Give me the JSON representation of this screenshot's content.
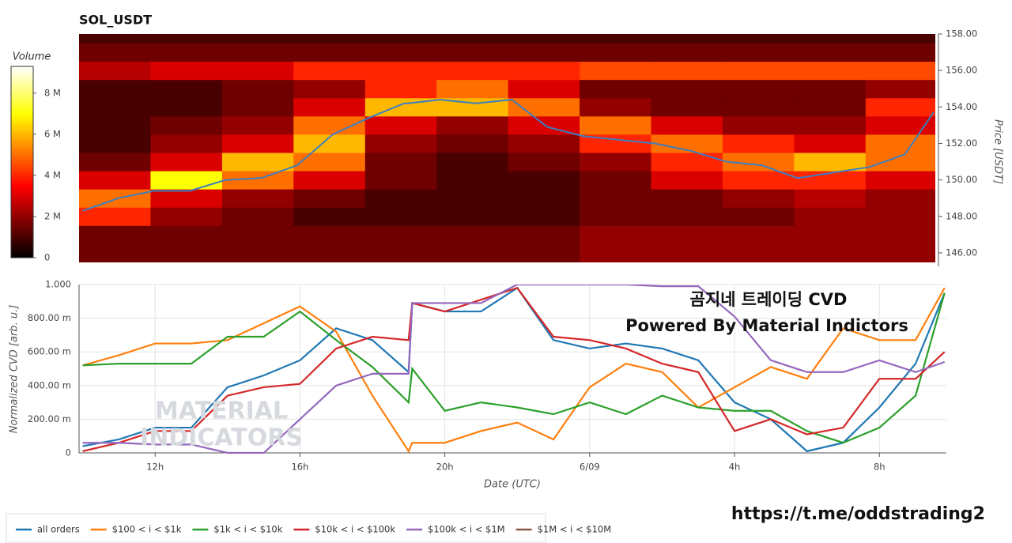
{
  "chart_data": [
    {
      "type": "heatmap",
      "title": "SOL_USDT",
      "colorbar_label": "Volume",
      "colorbar_lim": [
        0,
        9.3
      ],
      "colorbar_ticks": [
        0,
        {
          "value": 2,
          "label": "2 M"
        },
        {
          "value": 4,
          "label": "4 M"
        },
        {
          "value": 6,
          "label": "6 M"
        },
        {
          "value": 8,
          "label": "8 M"
        }
      ],
      "xlim": [
        9.9,
        33.85
      ],
      "x_edges": [
        9.9,
        11.9,
        13.9,
        15.9,
        17.9,
        19.9,
        21.9,
        23.9,
        25.9,
        27.9,
        29.9,
        31.9,
        33.85
      ],
      "price_levels": [
        146,
        147,
        148,
        149,
        150,
        151,
        152,
        153,
        154,
        155,
        156,
        157,
        158
      ],
      "values": [
        [
          1.5,
          1.5,
          1.5,
          1.5,
          1.5,
          1.5,
          1.5,
          2,
          2,
          2,
          2,
          2
        ],
        [
          1.5,
          1.5,
          1.5,
          1.5,
          1.5,
          1.5,
          1.5,
          2,
          2,
          2,
          2,
          2
        ],
        [
          4,
          2,
          1.5,
          1,
          1,
          1,
          1,
          1.5,
          1.5,
          1.5,
          2,
          2
        ],
        [
          5,
          3,
          2,
          1.5,
          1,
          1,
          1,
          1.5,
          1.5,
          2,
          2.5,
          2
        ],
        [
          3,
          7,
          5,
          3,
          1.5,
          1,
          1,
          1.5,
          3,
          4,
          4,
          3
        ],
        [
          1.5,
          3,
          6,
          5,
          1.5,
          1,
          1.5,
          2,
          4,
          5,
          6,
          5
        ],
        [
          1,
          2,
          3,
          6,
          2,
          1.5,
          2,
          4,
          5,
          4,
          3,
          5
        ],
        [
          1,
          1.5,
          2,
          5,
          3,
          2,
          3,
          5,
          3,
          2,
          2,
          3
        ],
        [
          1,
          1,
          1.5,
          3,
          6,
          6,
          5,
          2,
          1.5,
          1.5,
          1.5,
          4
        ],
        [
          1,
          1,
          1.5,
          2,
          4,
          5,
          3,
          1.5,
          1.5,
          1.5,
          1.5,
          2
        ],
        [
          2.5,
          3,
          3,
          4,
          4,
          4,
          4,
          4.5,
          4.5,
          4.5,
          4.5,
          4.5
        ],
        [
          1.5,
          1.5,
          1.5,
          1.5,
          1.5,
          1.5,
          1.5,
          1.5,
          1.5,
          1.5,
          1.5,
          1.5
        ],
        [
          1,
          1,
          1,
          1,
          1,
          1,
          1,
          1,
          1,
          1,
          1,
          1
        ]
      ],
      "price_line": {
        "color": "#3b7fc0",
        "x": [
          10,
          11,
          12,
          13,
          14,
          15,
          16,
          17,
          18,
          19,
          19.1,
          20,
          21,
          22,
          23,
          24,
          25,
          26,
          27,
          28,
          29,
          30,
          31,
          32,
          33,
          33.8
        ],
        "values": [
          148.3,
          149.0,
          149.4,
          149.4,
          150.0,
          150.1,
          150.8,
          152.5,
          153.4,
          154.2,
          154.2,
          154.4,
          154.2,
          154.4,
          152.9,
          152.4,
          152.2,
          152.0,
          151.6,
          151.0,
          150.8,
          150.1,
          150.4,
          150.7,
          151.4,
          153.7
        ]
      },
      "y2_label": "Price [USDT]",
      "y2lim": [
        145.26,
        158.0
      ],
      "y2ticks": [
        {
          "value": 146,
          "label": "146.00"
        },
        {
          "value": 148,
          "label": "148.00"
        },
        {
          "value": 150,
          "label": "150.00"
        },
        {
          "value": 152,
          "label": "152.00"
        },
        {
          "value": 154,
          "label": "154.00"
        },
        {
          "value": 156,
          "label": "156.00"
        },
        {
          "value": 158,
          "label": "158.00"
        }
      ]
    },
    {
      "type": "line",
      "ylabel": "Normalized CVD [arb. u.]",
      "xlabel": "Date (UTC)",
      "annotations": [
        "곰지네 트레이딩 CVD",
        "Powered By Material Indictors"
      ],
      "xlim": [
        9.9,
        33.85
      ],
      "xticks": [
        {
          "value": 12,
          "label": "12h"
        },
        {
          "value": 16,
          "label": "16h"
        },
        {
          "value": 20,
          "label": "20h"
        },
        {
          "value": 24,
          "label": "6/09"
        },
        {
          "value": 28,
          "label": "4h"
        },
        {
          "value": 32,
          "label": "8h"
        }
      ],
      "ylim": [
        0,
        1
      ],
      "yticks": [
        0,
        {
          "value": 0.2,
          "label": "200.00 m"
        },
        {
          "value": 0.4,
          "label": "400.00 m"
        },
        {
          "value": 0.6,
          "label": "600.00 m"
        },
        {
          "value": 0.8,
          "label": "800.00 m"
        },
        {
          "value": 1,
          "label": "1.000"
        }
      ],
      "grid": true,
      "legend": "bottom-left",
      "x": [
        10,
        11,
        12,
        13,
        14,
        15,
        16,
        17,
        18,
        19,
        19.1,
        20,
        21,
        22,
        23,
        24,
        25,
        26,
        27,
        28,
        29,
        30,
        31,
        32,
        33,
        33.8
      ],
      "series": [
        {
          "name": "all orders",
          "color": "#1f77b4",
          "values": [
            0.04,
            0.08,
            0.15,
            0.15,
            0.39,
            0.46,
            0.55,
            0.74,
            0.67,
            0.48,
            0.89,
            0.84,
            0.84,
            0.98,
            0.67,
            0.62,
            0.65,
            0.62,
            0.55,
            0.3,
            0.2,
            0.01,
            0.06,
            0.27,
            0.53,
            0.95
          ]
        },
        {
          "name": "$100 < i < $1k",
          "color": "#ff7f0e",
          "values": [
            0.52,
            0.58,
            0.65,
            0.65,
            0.67,
            0.77,
            0.87,
            0.72,
            0.34,
            0.01,
            0.06,
            0.06,
            0.13,
            0.18,
            0.08,
            0.39,
            0.53,
            0.48,
            0.27,
            0.39,
            0.51,
            0.44,
            0.74,
            0.67,
            0.67,
            0.98
          ]
        },
        {
          "name": "$1k < i < $10k",
          "color": "#2ca02c",
          "values": [
            0.52,
            0.53,
            0.53,
            0.53,
            0.69,
            0.69,
            0.84,
            0.67,
            0.51,
            0.3,
            0.5,
            0.25,
            0.3,
            0.27,
            0.23,
            0.3,
            0.23,
            0.34,
            0.27,
            0.25,
            0.25,
            0.13,
            0.06,
            0.15,
            0.34,
            0.95
          ]
        },
        {
          "name": "$10k < i < $100k",
          "color": "#d62728",
          "values": [
            0.01,
            0.06,
            0.13,
            0.13,
            0.34,
            0.39,
            0.41,
            0.62,
            0.69,
            0.67,
            0.89,
            0.84,
            0.91,
            0.98,
            0.69,
            0.67,
            0.62,
            0.53,
            0.48,
            0.13,
            0.2,
            0.11,
            0.15,
            0.44,
            0.44,
            0.6
          ]
        },
        {
          "name": "$100k < i < $1M",
          "color": "#9467bd",
          "values": [
            0.06,
            0.06,
            0.05,
            0.05,
            0,
            0,
            0.2,
            0.4,
            0.47,
            0.47,
            0.89,
            0.89,
            0.89,
            1,
            1,
            1,
            1,
            0.99,
            0.99,
            0.81,
            0.55,
            0.48,
            0.48,
            0.55,
            0.48,
            0.54
          ]
        },
        {
          "name": "$1M < i < $10M",
          "color": "#8c564b",
          "values": [
            null,
            null,
            null,
            null,
            null,
            null,
            null,
            null,
            null,
            null,
            null,
            null,
            null,
            null,
            null,
            null,
            null,
            null,
            null,
            null,
            null,
            null,
            null,
            null,
            null,
            null
          ]
        }
      ]
    }
  ],
  "watermark": [
    "MATERIAL",
    "INDICATORS"
  ],
  "footer_link": "https://t.me/oddstrading2"
}
